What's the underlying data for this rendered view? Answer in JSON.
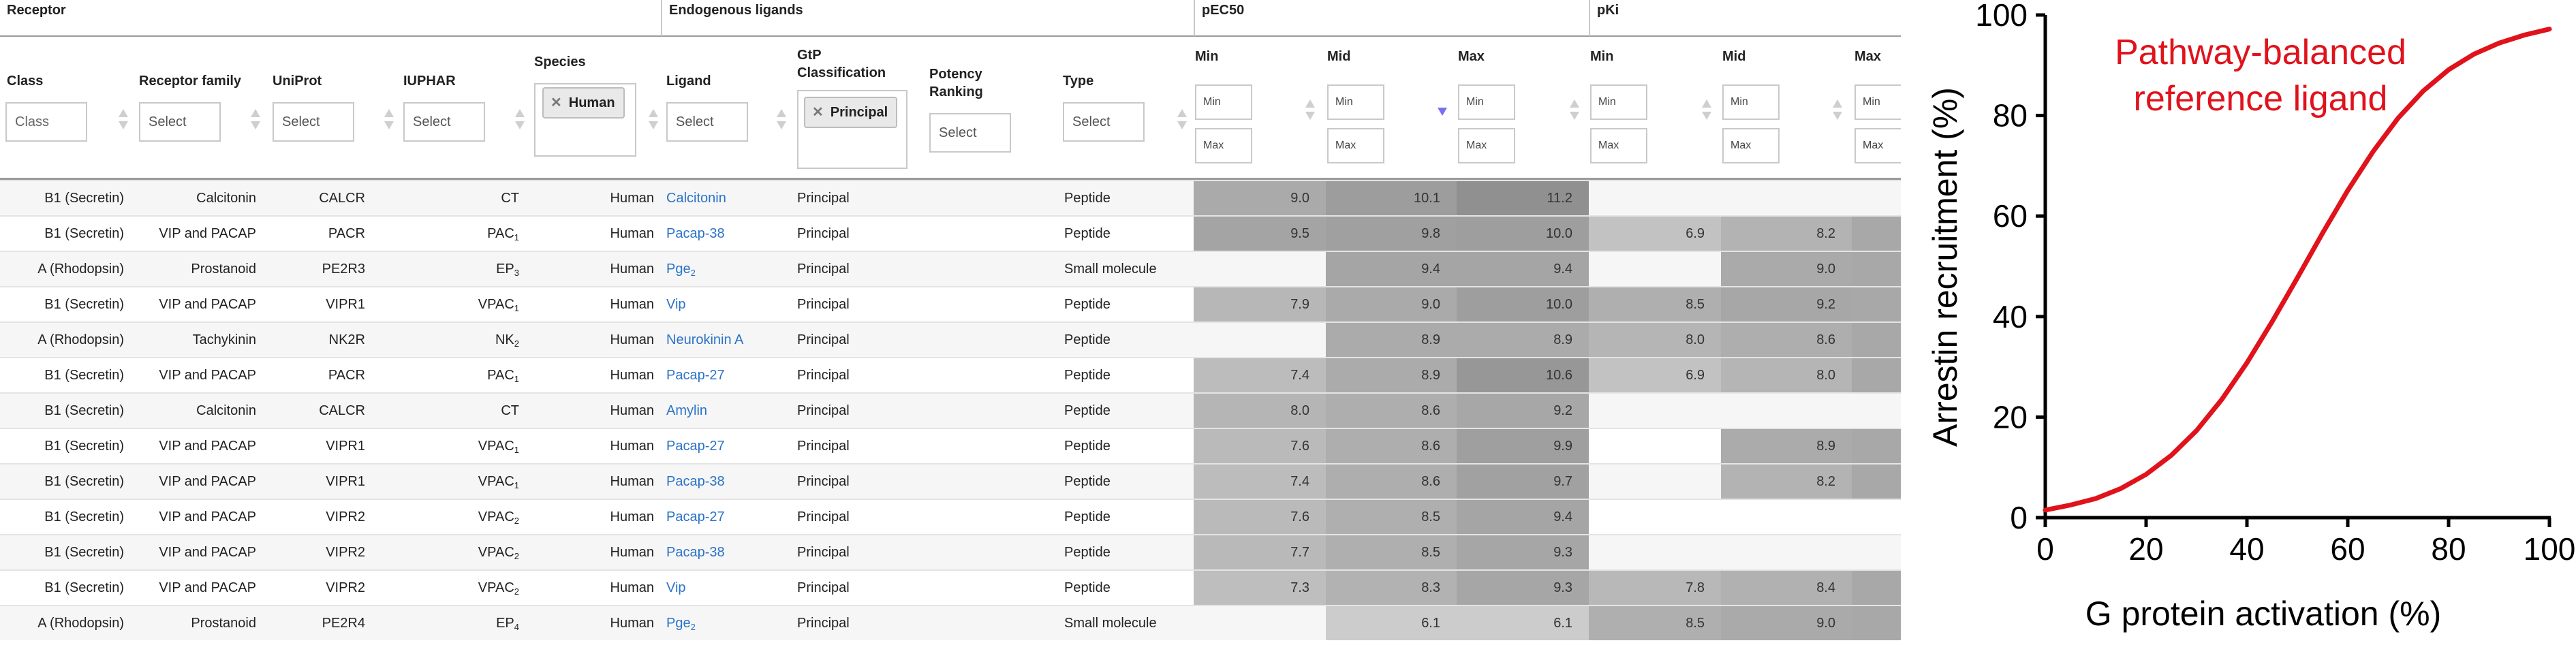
{
  "groups": {
    "receptor": "Receptor",
    "endogenous": "Endogenous ligands",
    "pec50": "pEC50",
    "pki": "pKi"
  },
  "columns": {
    "class": "Class",
    "family": "Receptor family",
    "uniprot": "UniProt",
    "iuphar": "IUPHAR",
    "species": "Species",
    "ligand": "Ligand",
    "gtp": "GtP Classification",
    "potency": "Potency Ranking",
    "type": "Type",
    "min": "Min",
    "mid": "Mid",
    "max": "Max"
  },
  "filters": {
    "class_placeholder": "Class",
    "family": "Select",
    "uniprot": "Select",
    "iuphar": "Select",
    "species_tag": "Human",
    "ligand": "Select",
    "gtp_tag": "Principal",
    "potency": "Select",
    "type": "Select",
    "min_label": "Min",
    "max_label": "Max"
  },
  "rows": [
    {
      "cls": "B1 (Secretin)",
      "fam": "Calcitonin",
      "uni": "CALCR",
      "iu": "CT",
      "iu_sub": "",
      "sp": "Human",
      "lig": "Calcitonin",
      "lig_sub": "",
      "gtp": "Principal",
      "type": "Peptide",
      "ec": [
        "9.0",
        "10.1",
        "11.2"
      ],
      "ki": [
        "",
        "",
        ""
      ]
    },
    {
      "cls": "B1 (Secretin)",
      "fam": "VIP and PACAP",
      "uni": "PACR",
      "iu": "PAC",
      "iu_sub": "1",
      "sp": "Human",
      "lig": "Pacap-38",
      "lig_sub": "",
      "gtp": "Principal",
      "type": "Peptide",
      "ec": [
        "9.5",
        "9.8",
        "10.0"
      ],
      "ki": [
        "6.9",
        "8.2",
        ""
      ]
    },
    {
      "cls": "A (Rhodopsin)",
      "fam": "Prostanoid",
      "uni": "PE2R3",
      "iu": "EP",
      "iu_sub": "3",
      "sp": "Human",
      "lig": "Pge",
      "lig_sub": "2",
      "gtp": "Principal",
      "type": "Small molecule",
      "ec": [
        "",
        "9.4",
        "9.4"
      ],
      "ki": [
        "",
        "9.0",
        ""
      ]
    },
    {
      "cls": "B1 (Secretin)",
      "fam": "VIP and PACAP",
      "uni": "VIPR1",
      "iu": "VPAC",
      "iu_sub": "1",
      "sp": "Human",
      "lig": "Vip",
      "lig_sub": "",
      "gtp": "Principal",
      "type": "Peptide",
      "ec": [
        "7.9",
        "9.0",
        "10.0"
      ],
      "ki": [
        "8.5",
        "9.2",
        ""
      ]
    },
    {
      "cls": "A (Rhodopsin)",
      "fam": "Tachykinin",
      "uni": "NK2R",
      "iu": "NK",
      "iu_sub": "2",
      "sp": "Human",
      "lig": "Neurokinin A",
      "lig_sub": "",
      "gtp": "Principal",
      "type": "Peptide",
      "ec": [
        "",
        "8.9",
        "8.9"
      ],
      "ki": [
        "8.0",
        "8.6",
        ""
      ]
    },
    {
      "cls": "B1 (Secretin)",
      "fam": "VIP and PACAP",
      "uni": "PACR",
      "iu": "PAC",
      "iu_sub": "1",
      "sp": "Human",
      "lig": "Pacap-27",
      "lig_sub": "",
      "gtp": "Principal",
      "type": "Peptide",
      "ec": [
        "7.4",
        "8.9",
        "10.6"
      ],
      "ki": [
        "6.9",
        "8.0",
        ""
      ]
    },
    {
      "cls": "B1 (Secretin)",
      "fam": "Calcitonin",
      "uni": "CALCR",
      "iu": "CT",
      "iu_sub": "",
      "sp": "Human",
      "lig": "Amylin",
      "lig_sub": "",
      "gtp": "Principal",
      "type": "Peptide",
      "ec": [
        "8.0",
        "8.6",
        "9.2"
      ],
      "ki": [
        "",
        "",
        ""
      ]
    },
    {
      "cls": "B1 (Secretin)",
      "fam": "VIP and PACAP",
      "uni": "VIPR1",
      "iu": "VPAC",
      "iu_sub": "1",
      "sp": "Human",
      "lig": "Pacap-27",
      "lig_sub": "",
      "gtp": "Principal",
      "type": "Peptide",
      "ec": [
        "7.6",
        "8.6",
        "9.9"
      ],
      "ki": [
        "",
        "8.9",
        ""
      ]
    },
    {
      "cls": "B1 (Secretin)",
      "fam": "VIP and PACAP",
      "uni": "VIPR1",
      "iu": "VPAC",
      "iu_sub": "1",
      "sp": "Human",
      "lig": "Pacap-38",
      "lig_sub": "",
      "gtp": "Principal",
      "type": "Peptide",
      "ec": [
        "7.4",
        "8.6",
        "9.7"
      ],
      "ki": [
        "",
        "8.2",
        ""
      ]
    },
    {
      "cls": "B1 (Secretin)",
      "fam": "VIP and PACAP",
      "uni": "VIPR2",
      "iu": "VPAC",
      "iu_sub": "2",
      "sp": "Human",
      "lig": "Pacap-27",
      "lig_sub": "",
      "gtp": "Principal",
      "type": "Peptide",
      "ec": [
        "7.6",
        "8.5",
        "9.4"
      ],
      "ki": [
        "",
        "",
        ""
      ]
    },
    {
      "cls": "B1 (Secretin)",
      "fam": "VIP and PACAP",
      "uni": "VIPR2",
      "iu": "VPAC",
      "iu_sub": "2",
      "sp": "Human",
      "lig": "Pacap-38",
      "lig_sub": "",
      "gtp": "Principal",
      "type": "Peptide",
      "ec": [
        "7.7",
        "8.5",
        "9.3"
      ],
      "ki": [
        "",
        "",
        ""
      ]
    },
    {
      "cls": "B1 (Secretin)",
      "fam": "VIP and PACAP",
      "uni": "VIPR2",
      "iu": "VPAC",
      "iu_sub": "2",
      "sp": "Human",
      "lig": "Vip",
      "lig_sub": "",
      "gtp": "Principal",
      "type": "Peptide",
      "ec": [
        "7.3",
        "8.3",
        "9.3"
      ],
      "ki": [
        "7.8",
        "8.4",
        ""
      ]
    },
    {
      "cls": "A (Rhodopsin)",
      "fam": "Prostanoid",
      "uni": "PE2R4",
      "iu": "EP",
      "iu_sub": "4",
      "sp": "Human",
      "lig": "Pge",
      "lig_sub": "2",
      "gtp": "Principal",
      "type": "Small molecule",
      "ec": [
        "",
        "6.1",
        "6.1"
      ],
      "ki": [
        "8.5",
        "9.0",
        ""
      ]
    }
  ],
  "chart_data": {
    "type": "line",
    "title": "",
    "annotation": "Pathway-balanced reference ligand",
    "xlabel": "G protein activation (%)",
    "ylabel": "Arrestin recruitment (%)",
    "xlim": [
      0,
      100
    ],
    "ylim": [
      0,
      100
    ],
    "xticks": [
      "0",
      "20",
      "40",
      "60",
      "80",
      "100"
    ],
    "yticks": [
      "0",
      "20",
      "40",
      "60",
      "80",
      "100"
    ],
    "grid": false,
    "line_color": "#e0121b",
    "series": [
      {
        "x": [
          0,
          5,
          10,
          15,
          20,
          25,
          30,
          35,
          40,
          45,
          50,
          55,
          60,
          65,
          70,
          75,
          80,
          85,
          90,
          95,
          100
        ],
        "y": [
          1.5,
          2.5,
          3.8,
          5.8,
          8.6,
          12.4,
          17.3,
          23.5,
          30.8,
          39.0,
          47.7,
          56.6,
          65.1,
          72.8,
          79.5,
          84.9,
          89.1,
          92.2,
          94.4,
          96.0,
          97.2
        ]
      }
    ]
  }
}
